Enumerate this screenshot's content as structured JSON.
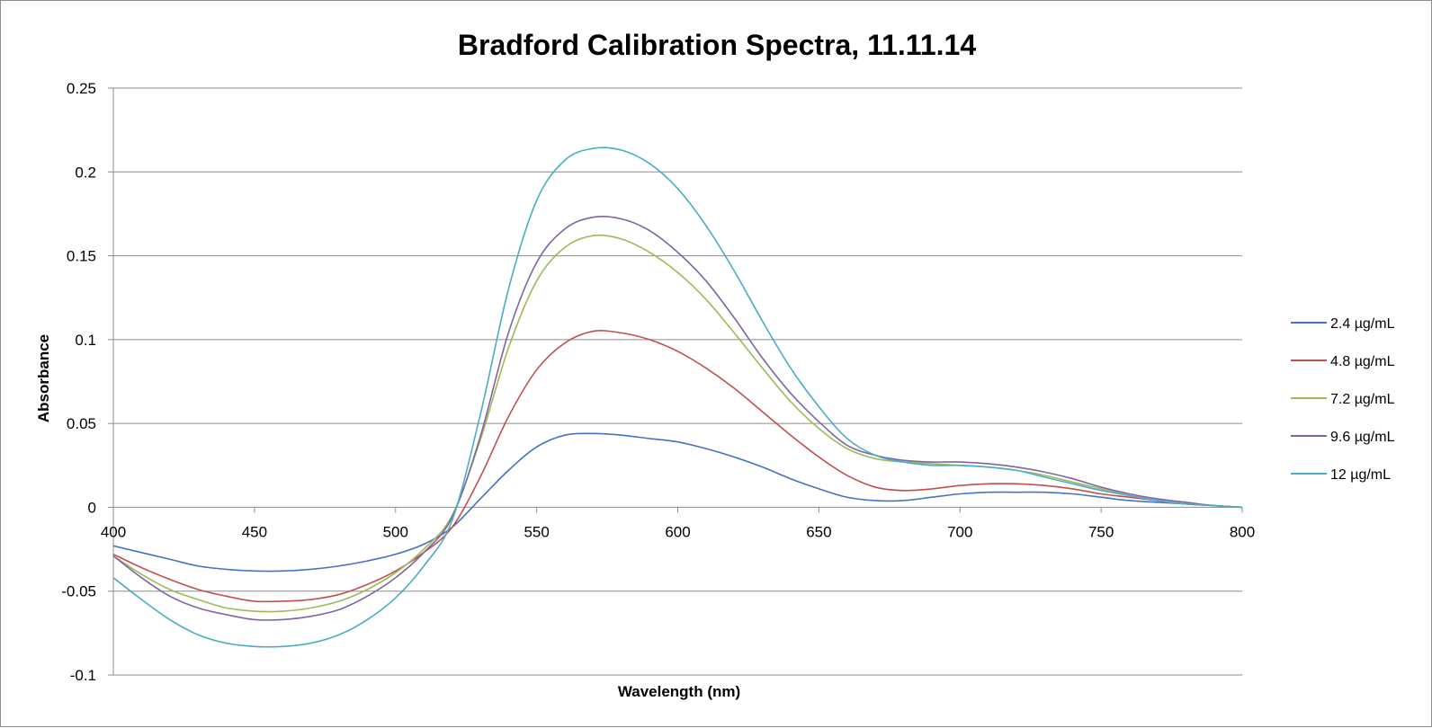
{
  "chart_data": {
    "type": "line",
    "title": "Bradford Calibration Spectra, 11.11.14",
    "xlabel": "Wavelength (nm)",
    "ylabel": "Absorbance",
    "xlim": [
      400,
      800
    ],
    "ylim": [
      -0.1,
      0.25
    ],
    "x_ticks": [
      400,
      450,
      500,
      550,
      600,
      650,
      700,
      750,
      800
    ],
    "x_tick_labels": [
      "400",
      "450",
      "500",
      "550",
      "600",
      "650",
      "700",
      "750",
      "800"
    ],
    "y_ticks": [
      -0.1,
      -0.05,
      0,
      0.05,
      0.1,
      0.15,
      0.2,
      0.25
    ],
    "y_tick_labels": [
      "-0.1",
      "-0.05",
      "0",
      "0.05",
      "0.1",
      "0.15",
      "0.2",
      "0.25"
    ],
    "grid": "horizontal",
    "legend_position": "right",
    "x": [
      400,
      410,
      420,
      430,
      440,
      450,
      460,
      470,
      480,
      490,
      500,
      510,
      520,
      530,
      540,
      550,
      560,
      570,
      580,
      590,
      600,
      610,
      620,
      630,
      640,
      650,
      660,
      670,
      680,
      690,
      700,
      710,
      720,
      730,
      740,
      750,
      760,
      770,
      780,
      790,
      800
    ],
    "series": [
      {
        "name": "2.4 µg/mL",
        "color": "#4472c4",
        "values": [
          -0.023,
          -0.027,
          -0.031,
          -0.035,
          -0.037,
          -0.038,
          -0.038,
          -0.037,
          -0.035,
          -0.032,
          -0.028,
          -0.022,
          -0.012,
          0.005,
          0.022,
          0.036,
          0.043,
          0.044,
          0.043,
          0.041,
          0.039,
          0.035,
          0.03,
          0.024,
          0.017,
          0.011,
          0.006,
          0.004,
          0.004,
          0.006,
          0.008,
          0.009,
          0.009,
          0.009,
          0.008,
          0.006,
          0.004,
          0.003,
          0.002,
          0.001,
          0.0
        ]
      },
      {
        "name": "4.8 µg/mL",
        "color": "#c0504d",
        "values": [
          -0.028,
          -0.036,
          -0.043,
          -0.049,
          -0.053,
          -0.056,
          -0.056,
          -0.055,
          -0.052,
          -0.046,
          -0.038,
          -0.027,
          -0.012,
          0.018,
          0.054,
          0.082,
          0.098,
          0.105,
          0.104,
          0.1,
          0.093,
          0.083,
          0.071,
          0.057,
          0.043,
          0.03,
          0.019,
          0.012,
          0.01,
          0.011,
          0.013,
          0.014,
          0.014,
          0.013,
          0.011,
          0.008,
          0.006,
          0.004,
          0.002,
          0.001,
          0.0
        ]
      },
      {
        "name": "7.2 µg/mL",
        "color": "#9bbb59",
        "values": [
          -0.029,
          -0.04,
          -0.049,
          -0.055,
          -0.06,
          -0.062,
          -0.062,
          -0.06,
          -0.056,
          -0.049,
          -0.039,
          -0.025,
          -0.005,
          0.04,
          0.095,
          0.135,
          0.155,
          0.162,
          0.16,
          0.152,
          0.14,
          0.124,
          0.104,
          0.083,
          0.063,
          0.047,
          0.035,
          0.029,
          0.027,
          0.026,
          0.025,
          0.024,
          0.022,
          0.019,
          0.015,
          0.011,
          0.007,
          0.004,
          0.002,
          0.001,
          0.0
        ]
      },
      {
        "name": "9.6 µg/mL",
        "color": "#8064a2",
        "values": [
          -0.029,
          -0.042,
          -0.053,
          -0.06,
          -0.064,
          -0.067,
          -0.067,
          -0.065,
          -0.061,
          -0.053,
          -0.042,
          -0.027,
          -0.006,
          0.042,
          0.104,
          0.146,
          0.166,
          0.173,
          0.172,
          0.165,
          0.152,
          0.135,
          0.113,
          0.089,
          0.068,
          0.051,
          0.037,
          0.031,
          0.028,
          0.027,
          0.027,
          0.026,
          0.024,
          0.021,
          0.017,
          0.012,
          0.008,
          0.005,
          0.003,
          0.001,
          0.0
        ]
      },
      {
        "name": "12 µg/mL",
        "color": "#4bacc6",
        "values": [
          -0.042,
          -0.055,
          -0.067,
          -0.076,
          -0.081,
          -0.083,
          -0.083,
          -0.081,
          -0.076,
          -0.067,
          -0.054,
          -0.035,
          -0.008,
          0.055,
          0.13,
          0.183,
          0.207,
          0.214,
          0.213,
          0.205,
          0.19,
          0.168,
          0.141,
          0.111,
          0.083,
          0.06,
          0.041,
          0.031,
          0.027,
          0.025,
          0.025,
          0.024,
          0.022,
          0.018,
          0.014,
          0.01,
          0.007,
          0.004,
          0.002,
          0.001,
          0.0
        ]
      }
    ]
  }
}
